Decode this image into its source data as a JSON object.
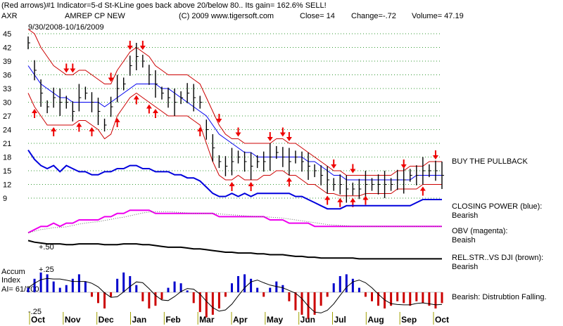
{
  "header": {
    "line1": "(Red arrows)#1 Indicator=5-d St-KLine goes back above 20/below 80.. Its gain= 162.6% SELL!",
    "ticker": "AXR",
    "company": "AMREP CP NEW",
    "copyright": "(C) 2009 www.tigersoft.com",
    "close": "Close=  14",
    "change": "Change=-.72",
    "volume": "Volume= 47.19",
    "date_range": "9/30/2008-10/16/2009"
  },
  "annotations": {
    "buy_pullback": "BUY THE PULLBACK",
    "closing_power": "CLOSING POWER (blue):",
    "closing_power_state": "Bearish",
    "obv": "OBV (magenta):",
    "obv_state": "Beaish",
    "relstr": "REL.STR..VS DJI (brown):",
    "relstr_state": "Bearish",
    "accum_title1": "Accum",
    "accum_title2": "Index",
    "accum_ai": "AI= 61/200",
    "accum_state": "Bearish: Distrubtion Falling.",
    "relstr_level": "+.50",
    "accum_top": "+.25",
    "accum_bottom": "-.25"
  },
  "colors": {
    "price": "#000000",
    "band": "#cc0000",
    "ma": "#0000ee",
    "closing_power": "#0000dd",
    "obv": "#ee00ee",
    "relstr": "#000000",
    "accum_pos": "#0000cc",
    "accum_neg": "#cc0000",
    "arrows": "#ee0000",
    "grid": "#339933"
  },
  "chart_data": {
    "type": "line",
    "title": "AMREP CP NEW",
    "ticker": "AXR",
    "x_labels": [
      "Oct",
      "Nov",
      "Dec",
      "Jan",
      "Feb",
      "Mar",
      "Apr",
      "May",
      "Jun",
      "Jul",
      "Aug",
      "Sep",
      "Oct"
    ],
    "y_ticks": [
      45,
      42,
      39,
      36,
      33,
      30,
      27,
      24,
      21,
      18,
      15,
      12,
      9
    ],
    "ylim": [
      9,
      45
    ],
    "price_series": [
      43,
      37,
      32,
      29,
      31,
      30,
      30,
      28,
      31,
      32,
      30,
      28,
      25,
      29,
      33,
      34,
      38,
      40,
      39,
      36,
      34,
      32,
      31,
      30,
      31,
      32,
      31,
      30,
      24,
      20,
      17,
      16,
      17,
      18,
      17,
      16,
      17,
      17,
      18,
      19,
      18,
      17,
      18,
      17,
      16,
      15,
      14,
      13,
      12,
      12,
      11,
      11,
      11,
      12,
      12,
      12,
      12,
      12,
      13,
      13,
      14,
      14,
      15,
      15,
      15,
      14
    ],
    "upper_band": [
      46,
      45,
      42,
      40,
      38,
      37,
      36,
      36,
      37,
      37,
      36,
      35,
      34,
      34,
      37,
      39,
      41,
      42,
      41,
      40,
      38,
      37,
      36,
      36,
      36,
      36,
      35,
      34,
      31,
      28,
      25,
      23,
      22,
      22,
      21,
      21,
      21,
      21,
      21,
      22,
      22,
      21,
      21,
      20,
      19,
      18,
      17,
      16,
      15,
      15,
      14,
      14,
      14,
      14,
      14,
      14,
      14,
      14,
      15,
      15,
      16,
      16,
      16,
      17,
      17,
      17
    ],
    "lower_band": [
      32,
      29,
      27,
      25,
      25,
      25,
      25,
      25,
      26,
      26,
      25,
      24,
      22,
      23,
      27,
      29,
      31,
      32,
      31,
      30,
      29,
      28,
      27,
      27,
      27,
      27,
      26,
      25,
      21,
      17,
      14,
      13,
      13,
      14,
      13,
      13,
      13,
      14,
      14,
      15,
      15,
      14,
      14,
      13,
      12,
      12,
      11,
      10,
      10,
      9.5,
      9.5,
      9.5,
      9.5,
      10,
      10,
      10,
      10,
      10,
      11,
      11,
      11,
      11,
      12,
      12,
      12,
      12
    ],
    "ma_series": [
      38,
      36,
      34,
      33,
      32,
      31,
      31,
      30,
      30,
      30,
      30,
      30,
      29,
      30,
      31,
      32,
      33,
      34,
      34,
      34,
      34,
      33,
      33,
      32,
      31,
      30,
      29,
      28,
      27,
      25,
      23,
      22,
      21,
      20,
      19,
      19,
      18,
      18,
      18,
      18,
      18,
      18,
      18,
      18,
      17,
      17,
      16,
      15,
      14,
      14,
      13,
      13,
      13,
      13,
      13,
      13,
      13,
      13,
      13,
      13,
      13,
      14,
      14,
      14,
      14,
      14
    ],
    "closing_power": [
      21,
      18,
      16,
      15,
      16,
      14,
      16,
      15,
      14,
      14,
      13,
      13,
      14,
      14,
      15,
      15,
      16,
      16,
      15,
      15,
      14,
      14,
      14,
      13,
      13,
      12,
      12,
      11,
      9,
      7,
      6,
      6,
      7,
      6,
      7,
      6,
      7,
      7,
      7,
      7,
      7,
      7,
      6,
      6,
      5,
      4,
      3,
      2,
      2,
      2,
      3,
      3,
      3,
      3,
      3,
      3,
      3,
      3,
      3,
      3,
      3,
      4,
      5,
      5,
      5,
      5
    ],
    "obv": [
      1,
      2,
      3,
      3,
      4,
      3,
      4,
      4,
      5,
      5,
      5,
      5,
      6,
      6,
      7,
      7,
      8,
      8,
      8,
      8,
      7,
      7,
      7,
      7,
      7,
      7,
      7,
      7,
      7,
      7,
      6,
      6,
      6,
      6,
      6,
      6,
      6,
      6,
      5,
      5,
      5,
      4,
      4,
      4,
      4,
      3,
      3,
      3,
      3,
      3,
      3,
      3,
      3,
      3,
      3,
      3,
      3,
      3,
      3,
      3,
      3,
      3,
      3,
      3,
      3,
      3
    ],
    "rel_strength": [
      0.6,
      0.58,
      0.57,
      0.56,
      0.56,
      0.56,
      0.55,
      0.55,
      0.56,
      0.56,
      0.56,
      0.56,
      0.55,
      0.55,
      0.55,
      0.56,
      0.56,
      0.56,
      0.55,
      0.55,
      0.54,
      0.53,
      0.52,
      0.52,
      0.52,
      0.51,
      0.5,
      0.5,
      0.49,
      0.48,
      0.47,
      0.46,
      0.46,
      0.45,
      0.45,
      0.45,
      0.44,
      0.44,
      0.43,
      0.43,
      0.43,
      0.42,
      0.41,
      0.41,
      0.4,
      0.4,
      0.39,
      0.39,
      0.39,
      0.39,
      0.39,
      0.39,
      0.38,
      0.38,
      0.38,
      0.38,
      0.38,
      0.38,
      0.38,
      0.38,
      0.38,
      0.38,
      0.38,
      0.38,
      0.38,
      0.38
    ],
    "accum_index": [
      0.05,
      0.15,
      0.22,
      0.2,
      0.12,
      0.05,
      0.08,
      0.15,
      0.2,
      0.12,
      -0.05,
      -0.12,
      -0.18,
      -0.05,
      0.15,
      0.22,
      0.18,
      0.08,
      -0.1,
      -0.18,
      -0.15,
      -0.08,
      0.05,
      0.12,
      0.1,
      0.02,
      -0.12,
      -0.22,
      -0.28,
      -0.25,
      -0.18,
      -0.05,
      0.1,
      0.18,
      0.2,
      0.15,
      0.05,
      -0.05,
      0.05,
      0.12,
      0.08,
      -0.1,
      -0.2,
      -0.25,
      -0.3,
      -0.25,
      -0.15,
      -0.05,
      0.1,
      0.18,
      0.2,
      0.15,
      0.05,
      -0.05,
      -0.1,
      -0.15,
      -0.18,
      -0.15,
      -0.1,
      -0.12,
      -0.15,
      -0.1,
      -0.12,
      -0.15,
      -0.18,
      -0.12
    ],
    "sell_arrows_idx": [
      6,
      7,
      13,
      16,
      18,
      30,
      33,
      38,
      40,
      41,
      48,
      51,
      59,
      64
    ],
    "buy_arrows_idx": [
      1,
      4,
      8,
      10,
      14,
      17,
      19,
      20,
      27,
      32,
      35,
      41,
      47,
      49,
      51,
      53,
      62
    ]
  }
}
